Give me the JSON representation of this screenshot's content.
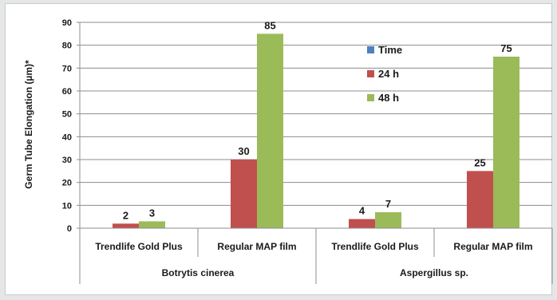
{
  "chart_data": {
    "type": "bar",
    "ylabel": "Germ Tube Elongation  (µm)*",
    "ylim": [
      0,
      90
    ],
    "yticks": [
      0,
      10,
      20,
      30,
      40,
      50,
      60,
      70,
      80,
      90
    ],
    "grid": true,
    "legend_position": "top-right",
    "groups": [
      {
        "label": "Botrytis cinerea",
        "categories": [
          "Trendlife Gold Plus",
          "Regular MAP film"
        ]
      },
      {
        "label": "Aspergillus sp.",
        "categories": [
          "Trendlife Gold Plus",
          "Regular MAP film"
        ]
      }
    ],
    "categories": [
      "Trendlife Gold Plus",
      "Regular MAP film",
      "Trendlife Gold Plus",
      "Regular MAP film"
    ],
    "series": [
      {
        "name": "Time",
        "color": "#4f81bd",
        "values": [
          null,
          null,
          null,
          null
        ]
      },
      {
        "name": "24 h",
        "color": "#c0504d",
        "values": [
          2,
          30,
          4,
          25
        ]
      },
      {
        "name": "48 h",
        "color": "#9bbb59",
        "values": [
          3,
          85,
          7,
          75
        ]
      }
    ]
  }
}
